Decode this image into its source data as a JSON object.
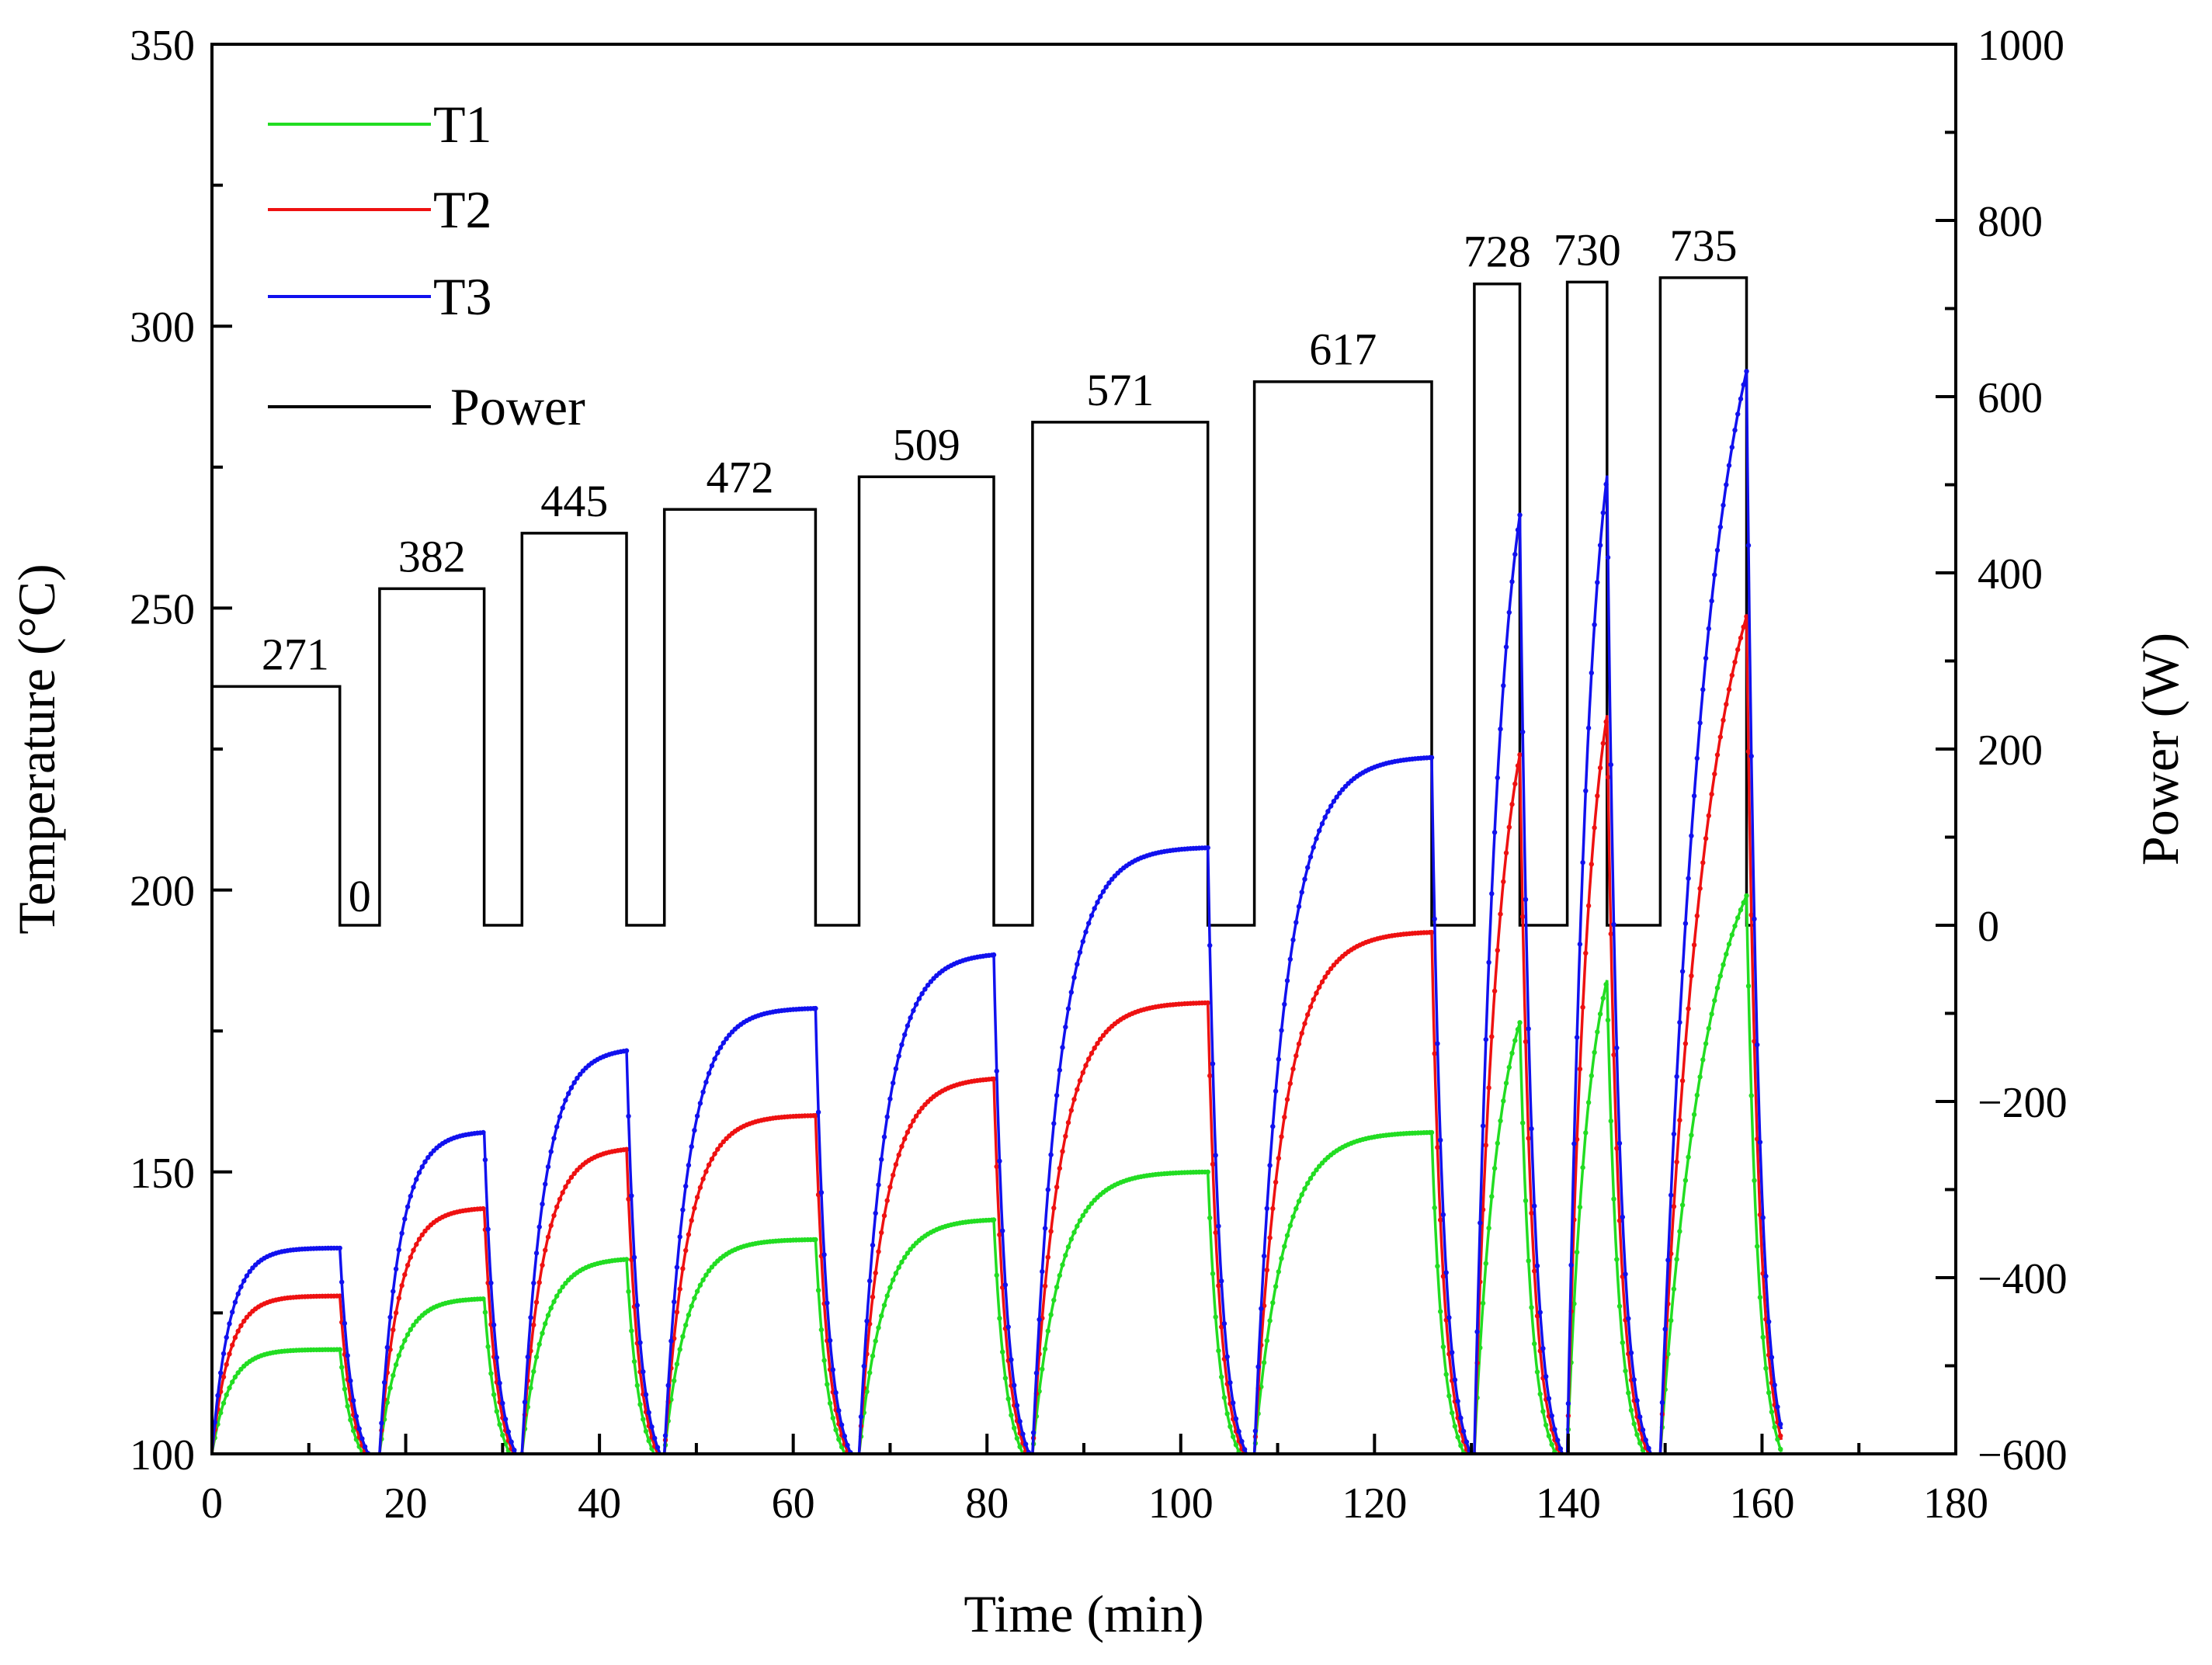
{
  "chart_data": {
    "type": "line",
    "xlabel": "Time (min)",
    "ylabel_left": "Temperature (°C)",
    "ylabel_right": "Power (W)",
    "xlim": [
      0,
      180
    ],
    "ylim_left": [
      100,
      350
    ],
    "ylim_right": [
      -600,
      1000
    ],
    "x_ticks": [
      0,
      20,
      40,
      60,
      80,
      100,
      120,
      140,
      160,
      180
    ],
    "y_left_ticks": [
      100,
      150,
      200,
      250,
      300,
      350
    ],
    "y_right_ticks": [
      -600,
      -400,
      -200,
      0,
      200,
      400,
      600,
      800,
      1000
    ],
    "grid": false,
    "legend_position": "top-left",
    "legend": [
      "T1",
      "T2",
      "T3",
      "Power"
    ],
    "colors": {
      "T1": "#22dd22",
      "T2": "#ee1111",
      "T3": "#1111ee",
      "Power": "#000000"
    },
    "power_annotations": [
      "271",
      "0",
      "382",
      "445",
      "472",
      "509",
      "571",
      "617",
      "728",
      "730",
      "735"
    ],
    "power_segments": [
      {
        "t_on": 0,
        "t_off": 13.2,
        "power": 271
      },
      {
        "t_on": 17.3,
        "t_off": 28.1,
        "power": 382
      },
      {
        "t_on": 32.0,
        "t_off": 42.8,
        "power": 445
      },
      {
        "t_on": 46.7,
        "t_off": 62.3,
        "power": 472
      },
      {
        "t_on": 66.8,
        "t_off": 80.7,
        "power": 509
      },
      {
        "t_on": 84.7,
        "t_off": 102.8,
        "power": 571
      },
      {
        "t_on": 107.6,
        "t_off": 125.9,
        "power": 617
      },
      {
        "t_on": 130.3,
        "t_off": 135.0,
        "power": 728
      },
      {
        "t_on": 139.9,
        "t_off": 144.0,
        "power": 730
      },
      {
        "t_on": 149.5,
        "t_off": 158.4,
        "power": 735
      }
    ],
    "power_end": 159.3,
    "temperature_cycles": [
      {
        "t_on": 0,
        "t_off": 13.2,
        "t_next": 17.3,
        "T1": 118.5,
        "T2": 128,
        "T3": 136.5,
        "tau": 1.8,
        "start": 100
      },
      {
        "t_on": 17.3,
        "t_off": 28.1,
        "t_next": 32.0,
        "T1": 127.5,
        "T2": 143.5,
        "T3": 157,
        "tau": 2.0,
        "start": 100
      },
      {
        "t_on": 32.0,
        "t_off": 42.8,
        "t_next": 46.7,
        "T1": 134.5,
        "T2": 154,
        "T3": 171.5,
        "tau": 2.2,
        "start": 100
      },
      {
        "t_on": 46.7,
        "t_off": 62.3,
        "t_next": 66.8,
        "T1": 138,
        "T2": 160,
        "T3": 179,
        "tau": 2.4,
        "start": 100
      },
      {
        "t_on": 66.8,
        "t_off": 80.7,
        "t_next": 84.7,
        "T1": 141.5,
        "T2": 166.5,
        "T3": 188.5,
        "tau": 2.6,
        "start": 100
      },
      {
        "t_on": 84.7,
        "t_off": 102.8,
        "t_next": 107.6,
        "T1": 150,
        "T2": 180,
        "T3": 207.5,
        "tau": 2.8,
        "start": 100
      },
      {
        "t_on": 107.6,
        "t_off": 125.9,
        "t_next": 130.3,
        "T1": 157,
        "T2": 192.5,
        "T3": 223.5,
        "tau": 3.0,
        "start": 100
      },
      {
        "t_on": 130.3,
        "t_off": 135.0,
        "t_next": 139.9,
        "T1": 176.5,
        "T2": 224,
        "T3": 266.5,
        "tau": null,
        "start": 100
      },
      {
        "t_on": 139.9,
        "t_off": 144.0,
        "t_next": 149.5,
        "T1": 184,
        "T2": 231,
        "T3": 273.5,
        "tau": null,
        "start": 100
      },
      {
        "t_on": 149.5,
        "t_off": 158.4,
        "t_next": 162.0,
        "T1": 199,
        "T2": 248.5,
        "T3": 292,
        "tau": null,
        "start": 100
      }
    ]
  }
}
